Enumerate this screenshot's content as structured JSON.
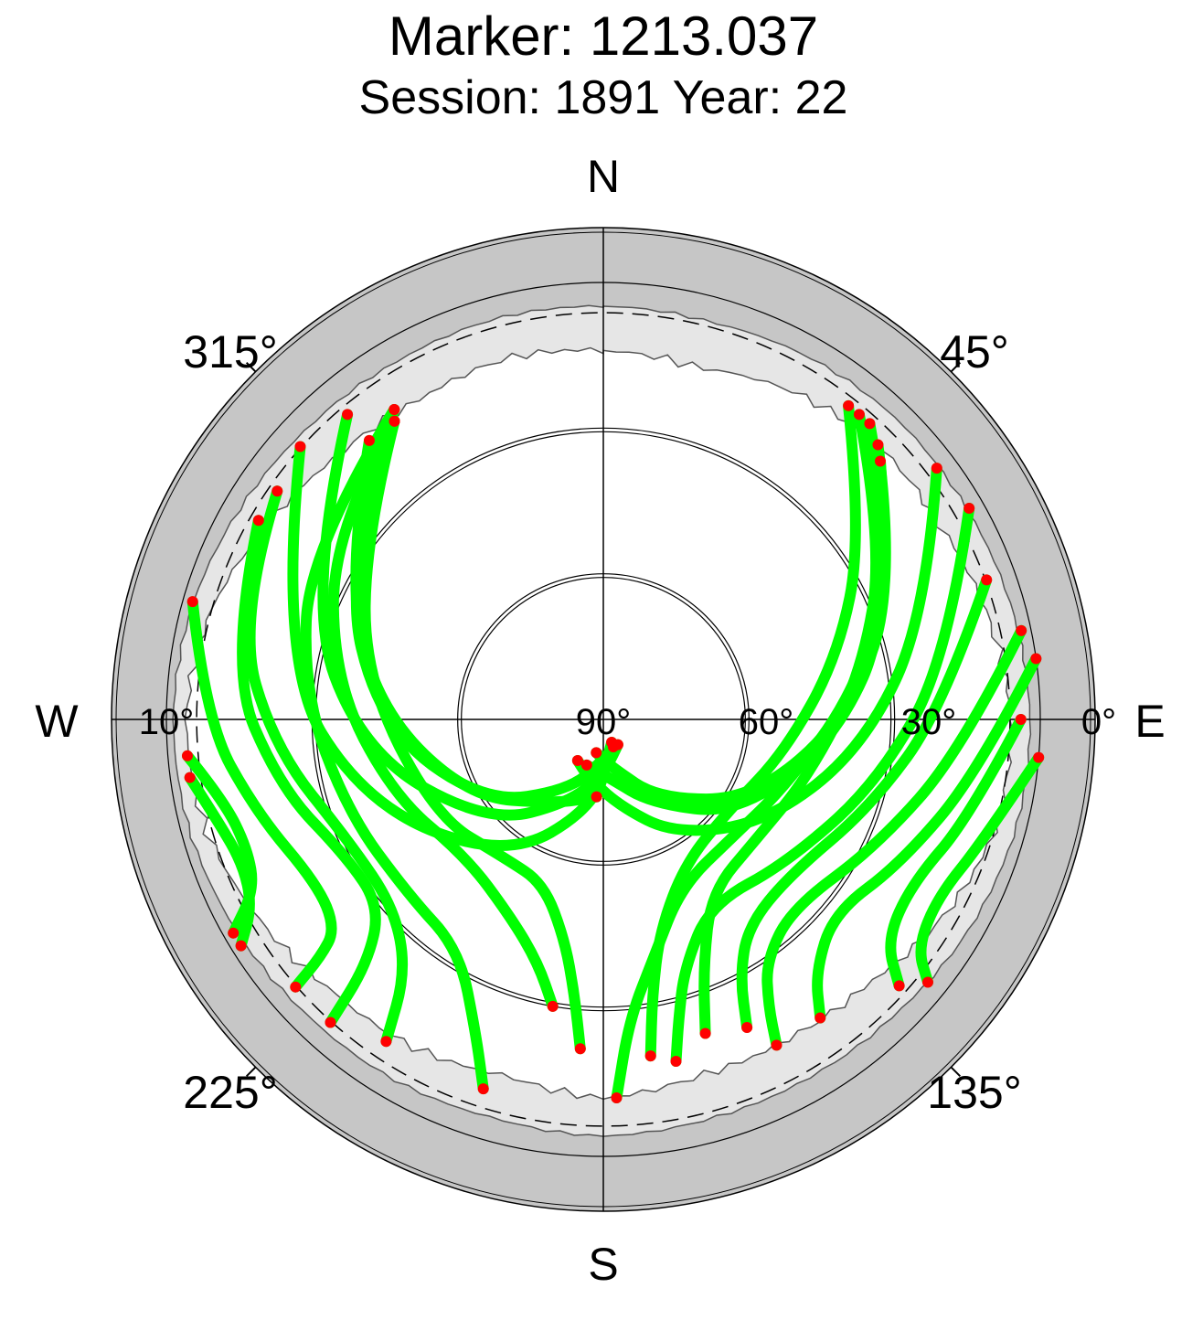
{
  "chart_data": {
    "type": "scatter",
    "title": "Marker: 1213.037",
    "subtitle": "Session: 1891 Year: 22",
    "directions": {
      "north": "N",
      "south": "S",
      "east": "E",
      "west": "W"
    },
    "azimuth_labels": [
      {
        "azimuth": 45,
        "label": "45°"
      },
      {
        "azimuth": 135,
        "label": "135°"
      },
      {
        "azimuth": 225,
        "label": "225°"
      },
      {
        "azimuth": 315,
        "label": "315°"
      }
    ],
    "elevation_labels": [
      {
        "elevation": 90,
        "label": "90°"
      },
      {
        "elevation": 60,
        "label": "60°"
      },
      {
        "elevation": 30,
        "label": "30°"
      },
      {
        "elevation": 0,
        "label": "0°"
      },
      {
        "elevation": 10,
        "label": "10°"
      }
    ],
    "elevation_circles": [
      0,
      30,
      60
    ],
    "cutoff_elevation": 10,
    "colors": {
      "track": "#00ff00",
      "track_end": "#ff0000",
      "outer_band": "#c6c6c6",
      "mask_fill": "#e6e6e6",
      "axes": "#000000"
    },
    "series": [
      {
        "name": "",
        "tracks": [
          [
            [
              312,
              6
            ],
            [
              280,
              22
            ],
            [
              250,
              38
            ],
            [
              215,
              55
            ],
            [
              185,
              72
            ],
            [
              160,
              85
            ]
          ],
          [
            [
              320,
              8
            ],
            [
              292,
              24
            ],
            [
              262,
              40
            ],
            [
              228,
              58
            ],
            [
              200,
              72
            ],
            [
              176,
              80
            ],
            [
              150,
              84
            ]
          ],
          [
            [
              326,
              13
            ],
            [
              300,
              28
            ],
            [
              268,
              44
            ],
            [
              235,
              60
            ],
            [
              205,
              74
            ],
            [
              178,
              82
            ],
            [
              160,
              84
            ]
          ],
          [
            [
              320,
              15
            ],
            [
              298,
              30
            ],
            [
              272,
              44
            ],
            [
              240,
              58
            ],
            [
              210,
              70
            ],
            [
              185,
              74
            ]
          ],
          [
            [
              325,
              15
            ],
            [
              308,
              28
            ],
            [
              280,
              40
            ],
            [
              240,
              50
            ],
            [
              215,
              55
            ],
            [
              200,
              54
            ],
            [
              190,
              44
            ],
            [
              186,
              33
            ],
            [
              184,
              22
            ]
          ],
          [
            [
              325,
              15
            ],
            [
              305,
              22
            ],
            [
              278,
              34
            ],
            [
              250,
              44
            ],
            [
              225,
              50
            ],
            [
              205,
              45
            ],
            [
              195,
              38
            ],
            [
              190,
              30
            ]
          ],
          [
            [
              326,
              13
            ],
            [
              300,
              20
            ],
            [
              275,
              28
            ],
            [
              250,
              34
            ],
            [
              228,
              36
            ],
            [
              212,
              34
            ],
            [
              202,
              20
            ],
            [
              198,
              10
            ]
          ],
          [
            [
              305,
              8
            ],
            [
              285,
              12
            ],
            [
              265,
              22
            ],
            [
              244,
              32
            ],
            [
              228,
              32
            ],
            [
              218,
              24
            ],
            [
              214,
              10
            ]
          ],
          [
            [
              300,
              8
            ],
            [
              278,
              12
            ],
            [
              258,
              22
            ],
            [
              242,
              30
            ],
            [
              230,
              30
            ],
            [
              224,
              20
            ],
            [
              222,
              6
            ]
          ],
          [
            [
              286,
              2
            ],
            [
              270,
              8
            ],
            [
              255,
              16
            ],
            [
              240,
              22
            ],
            [
              232,
              20
            ],
            [
              230,
              14
            ],
            [
              229,
              6
            ]
          ],
          [
            [
              265,
              4
            ],
            [
              258,
              10
            ],
            [
              250,
              12
            ],
            [
              244,
              10
            ],
            [
              240,
              2
            ]
          ],
          [
            [
              262,
              4
            ],
            [
              255,
              8
            ],
            [
              248,
              10
            ],
            [
              242,
              8
            ],
            [
              238,
              2
            ]
          ],
          [
            [
              38,
              8
            ],
            [
              55,
              25
            ],
            [
              75,
              40
            ],
            [
              100,
              52
            ],
            [
              125,
              58
            ],
            [
              150,
              56
            ],
            [
              165,
              45
            ],
            [
              170,
              32
            ],
            [
              172,
              20
            ]
          ],
          [
            [
              40,
              8
            ],
            [
              58,
              22
            ],
            [
              80,
              36
            ],
            [
              105,
              46
            ],
            [
              128,
              50
            ],
            [
              148,
              48
            ],
            [
              158,
              35
            ],
            [
              162,
              22
            ]
          ],
          [
            [
              42,
              8
            ],
            [
              62,
              22
            ],
            [
              84,
              38
            ],
            [
              110,
              50
            ],
            [
              132,
              54
            ],
            [
              155,
              52
            ],
            [
              168,
              40
            ],
            [
              175,
              28
            ],
            [
              178,
              12
            ]
          ],
          [
            [
              45,
              10
            ],
            [
              66,
              24
            ],
            [
              90,
              40
            ],
            [
              118,
              55
            ],
            [
              145,
              70
            ],
            [
              170,
              80
            ],
            [
              192,
              83
            ]
          ],
          [
            [
              47,
              12
            ],
            [
              70,
              27
            ],
            [
              95,
              42
            ],
            [
              125,
              56
            ],
            [
              150,
              70
            ],
            [
              175,
              78
            ],
            [
              200,
              80
            ]
          ],
          [
            [
              53,
              4
            ],
            [
              72,
              20
            ],
            [
              96,
              36
            ],
            [
              122,
              50
            ],
            [
              148,
              62
            ],
            [
              170,
              72
            ],
            [
              196,
              78
            ],
            [
              212,
              80
            ]
          ],
          [
            [
              60,
              3
            ],
            [
              80,
              18
            ],
            [
              103,
              32
            ],
            [
              128,
              42
            ],
            [
              150,
              46
            ],
            [
              162,
              36
            ],
            [
              166,
              26
            ],
            [
              168,
              18
            ]
          ],
          [
            [
              70,
              6
            ],
            [
              88,
              20
            ],
            [
              108,
              32
            ],
            [
              130,
              40
            ],
            [
              145,
              38
            ],
            [
              152,
              30
            ],
            [
              155,
              20
            ]
          ],
          [
            [
              78,
              2
            ],
            [
              95,
              16
            ],
            [
              115,
              28
            ],
            [
              135,
              35
            ],
            [
              146,
              30
            ],
            [
              150,
              22
            ],
            [
              152,
              14
            ]
          ],
          [
            [
              82,
              0
            ],
            [
              98,
              12
            ],
            [
              116,
              22
            ],
            [
              130,
              28
            ],
            [
              140,
              22
            ],
            [
              144,
              14
            ]
          ],
          [
            [
              90,
              4
            ],
            [
              105,
              12
            ],
            [
              118,
              18
            ],
            [
              128,
              16
            ],
            [
              132,
              8
            ]
          ],
          [
            [
              95,
              0
            ],
            [
              108,
              8
            ],
            [
              118,
              12
            ],
            [
              126,
              10
            ],
            [
              129,
              4
            ]
          ]
        ]
      }
    ],
    "mask_profile": [
      [
        0,
        14
      ],
      [
        15,
        15
      ],
      [
        30,
        12
      ],
      [
        45,
        10
      ],
      [
        60,
        10
      ],
      [
        75,
        8
      ],
      [
        90,
        6
      ],
      [
        105,
        6
      ],
      [
        120,
        9
      ],
      [
        135,
        13
      ],
      [
        150,
        14
      ],
      [
        165,
        14
      ],
      [
        180,
        12
      ],
      [
        195,
        14
      ],
      [
        210,
        12
      ],
      [
        225,
        11
      ],
      [
        240,
        8
      ],
      [
        255,
        5
      ],
      [
        270,
        4
      ],
      [
        285,
        6
      ],
      [
        300,
        10
      ],
      [
        315,
        13
      ],
      [
        330,
        14
      ],
      [
        345,
        13
      ]
    ]
  }
}
